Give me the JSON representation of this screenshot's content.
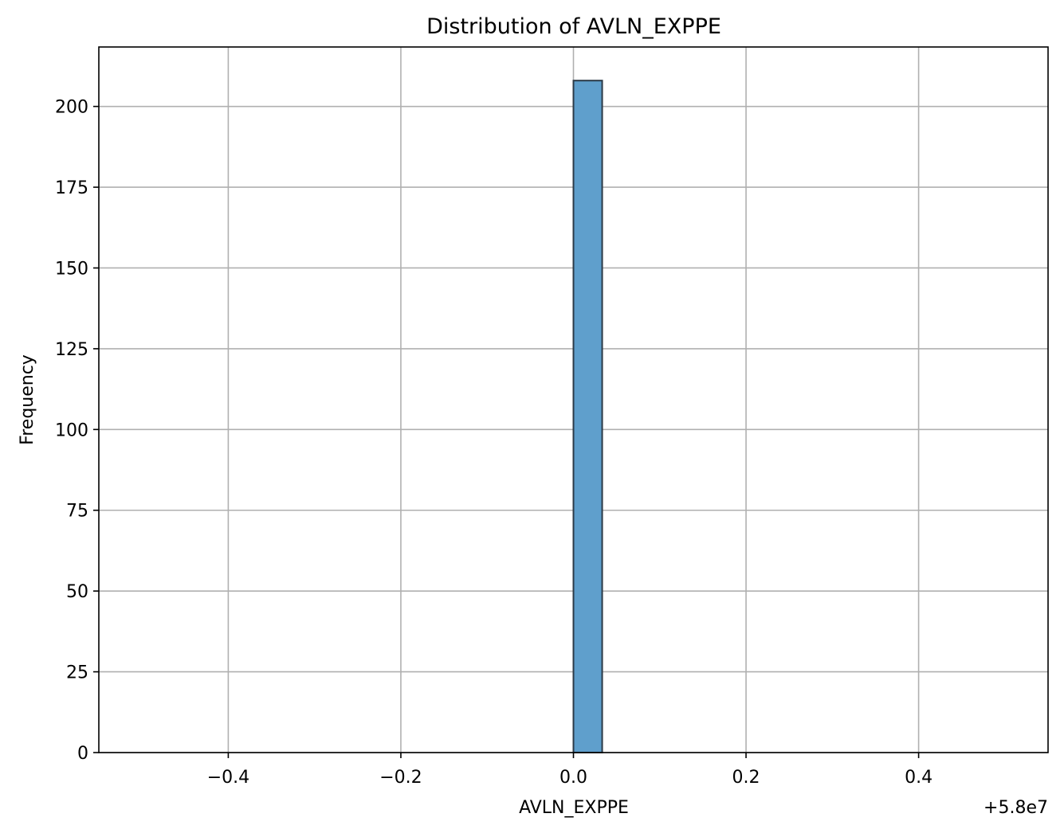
{
  "chart_data": {
    "type": "bar",
    "title": "Distribution of AVLN_EXPPE",
    "xlabel": "AVLN_EXPPE",
    "ylabel": "Frequency",
    "offset_text": "+5.8e7",
    "xlim": [
      -0.55,
      0.55
    ],
    "ylim": [
      0,
      218.4
    ],
    "grid": true,
    "bar_color": "#5f9fcc",
    "edge_color": "#2b3a47",
    "bins": [
      {
        "start": 0.0,
        "end": 0.0333,
        "count": 208
      }
    ],
    "x_ticks": [
      {
        "value": -0.4,
        "label": "−0.4"
      },
      {
        "value": -0.2,
        "label": "−0.2"
      },
      {
        "value": 0.0,
        "label": "0.0"
      },
      {
        "value": 0.2,
        "label": "0.2"
      },
      {
        "value": 0.4,
        "label": "0.4"
      }
    ],
    "y_ticks": [
      {
        "value": 0,
        "label": "0"
      },
      {
        "value": 25,
        "label": "25"
      },
      {
        "value": 50,
        "label": "50"
      },
      {
        "value": 75,
        "label": "75"
      },
      {
        "value": 100,
        "label": "100"
      },
      {
        "value": 125,
        "label": "125"
      },
      {
        "value": 150,
        "label": "150"
      },
      {
        "value": 175,
        "label": "175"
      },
      {
        "value": 200,
        "label": "200"
      }
    ]
  }
}
